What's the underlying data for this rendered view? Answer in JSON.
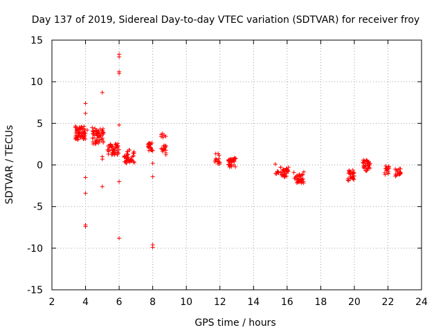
{
  "chart_data": {
    "type": "scatter",
    "title": "Day 137 of 2019, Sidereal Day-to-day VTEC variation (SDTVAR) for receiver froy",
    "xlabel": "GPS time / hours",
    "ylabel": "SDTVAR / TECUs",
    "xlim": [
      2,
      24
    ],
    "ylim": [
      -15,
      15
    ],
    "xticks": [
      2,
      4,
      6,
      8,
      10,
      12,
      14,
      16,
      18,
      20,
      22,
      24
    ],
    "yticks": [
      -15,
      -10,
      -5,
      0,
      5,
      10,
      15
    ],
    "grid": true,
    "marker": "+",
    "color": "#ff0000",
    "clusters": [
      {
        "x": [
          3.4,
          4.0
        ],
        "y": [
          3.0,
          4.7
        ],
        "n": 60
      },
      {
        "x": [
          4.4,
          5.1
        ],
        "y": [
          2.5,
          4.5
        ],
        "n": 55
      },
      {
        "x": [
          5.3,
          6.0
        ],
        "y": [
          1.2,
          2.6
        ],
        "n": 45
      },
      {
        "x": [
          6.3,
          6.9
        ],
        "y": [
          0.2,
          1.8
        ],
        "n": 40
      },
      {
        "x": [
          7.7,
          8.0
        ],
        "y": [
          1.7,
          2.7
        ],
        "n": 20
      },
      {
        "x": [
          8.5,
          8.8
        ],
        "y": [
          1.2,
          2.4
        ],
        "n": 15
      },
      {
        "x": [
          8.5,
          8.8
        ],
        "y": [
          3.3,
          3.8
        ],
        "n": 6
      },
      {
        "x": [
          11.7,
          12.0
        ],
        "y": [
          0.0,
          1.4
        ],
        "n": 15
      },
      {
        "x": [
          12.5,
          13.0
        ],
        "y": [
          -0.3,
          0.9
        ],
        "n": 35
      },
      {
        "x": [
          15.2,
          15.5
        ],
        "y": [
          -1.1,
          -0.7
        ],
        "n": 8
      },
      {
        "x": [
          15.6,
          16.1
        ],
        "y": [
          -1.5,
          -0.2
        ],
        "n": 30
      },
      {
        "x": [
          16.4,
          17.0
        ],
        "y": [
          -2.2,
          -0.8
        ],
        "n": 35
      },
      {
        "x": [
          19.6,
          20.0
        ],
        "y": [
          -1.9,
          -0.6
        ],
        "n": 28
      },
      {
        "x": [
          20.5,
          21.0
        ],
        "y": [
          -0.7,
          0.6
        ],
        "n": 35
      },
      {
        "x": [
          21.8,
          22.1
        ],
        "y": [
          -1.2,
          0.0
        ],
        "n": 15
      },
      {
        "x": [
          22.4,
          22.8
        ],
        "y": [
          -1.4,
          -0.4
        ],
        "n": 18
      }
    ],
    "points": [
      {
        "x": 4.0,
        "y": 7.4
      },
      {
        "x": 4.0,
        "y": 6.2
      },
      {
        "x": 4.0,
        "y": -1.5
      },
      {
        "x": 4.0,
        "y": -3.4
      },
      {
        "x": 4.0,
        "y": -7.2
      },
      {
        "x": 4.0,
        "y": -7.4
      },
      {
        "x": 5.0,
        "y": 8.7
      },
      {
        "x": 5.0,
        "y": 1.0
      },
      {
        "x": 5.0,
        "y": 0.7
      },
      {
        "x": 5.0,
        "y": -2.6
      },
      {
        "x": 6.0,
        "y": 13.3
      },
      {
        "x": 6.0,
        "y": 13.0
      },
      {
        "x": 6.0,
        "y": 11.2
      },
      {
        "x": 6.0,
        "y": 11.0
      },
      {
        "x": 6.0,
        "y": 4.8
      },
      {
        "x": 6.0,
        "y": -2.0
      },
      {
        "x": 6.0,
        "y": -8.8
      },
      {
        "x": 8.0,
        "y": 0.2
      },
      {
        "x": 8.0,
        "y": -1.4
      },
      {
        "x": 8.0,
        "y": -9.6
      },
      {
        "x": 8.0,
        "y": -9.9
      },
      {
        "x": 15.3,
        "y": 0.1
      },
      {
        "x": 5.9,
        "y": 1.5
      },
      {
        "x": 4.1,
        "y": 4.2
      }
    ]
  }
}
